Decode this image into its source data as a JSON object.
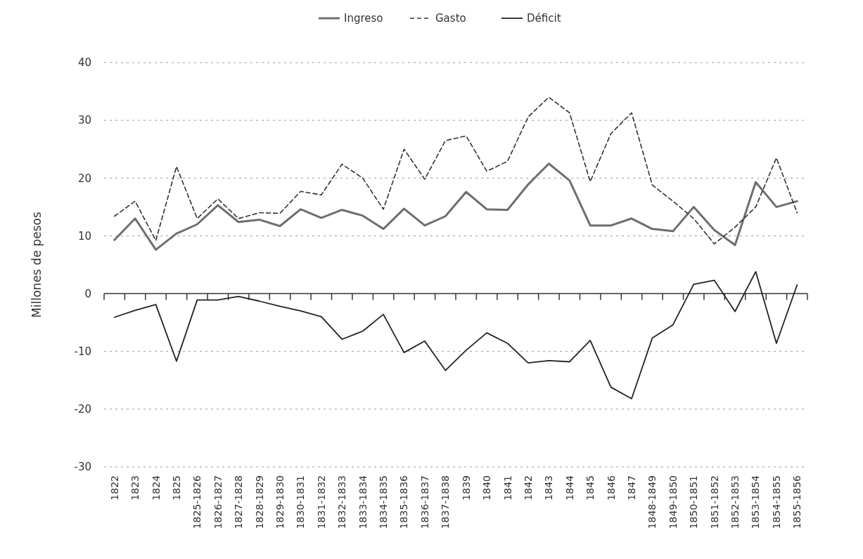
{
  "chart_data": {
    "type": "line",
    "ylabel": "Millones de pesos",
    "categories": [
      "1822",
      "1823",
      "1824",
      "1825",
      "1825-1826",
      "1826-1827",
      "1827-1828",
      "1828-1829",
      "1829-1830",
      "1830-1831",
      "1831-1832",
      "1832-1833",
      "1833-1834",
      "1834-1835",
      "1835-1836",
      "1836-1837",
      "1837-1838",
      "1839",
      "1840",
      "1841",
      "1842",
      "1843",
      "1844",
      "1845",
      "1846",
      "1847",
      "1848-1849",
      "1849-1850",
      "1850-1851",
      "1851-1852",
      "1852-1853",
      "1853-1854",
      "1854-1855",
      "1855-1856"
    ],
    "series": [
      {
        "name": "Ingreso",
        "color": "#6e6e6e",
        "line_style": "solid",
        "values": [
          9.3,
          13,
          7.6,
          10.4,
          12,
          15.3,
          12.4,
          12.8,
          11.7,
          14.6,
          13.1,
          14.5,
          13.5,
          11.2,
          14.7,
          11.8,
          13.4,
          17.6,
          14.6,
          14.5,
          18.9,
          22.5,
          19.6,
          11.8,
          11.8,
          13,
          11.2,
          10.8,
          15,
          11,
          8.4,
          19.3,
          15,
          16
        ]
      },
      {
        "name": "Gasto",
        "color": "#333333",
        "line_style": "dashed",
        "values": [
          13.4,
          16,
          9.2,
          22,
          13,
          16.4,
          13,
          14,
          13.9,
          17.7,
          17.1,
          22.4,
          20,
          14.6,
          25,
          19.8,
          26.5,
          27.3,
          21.2,
          22.9,
          30.6,
          34,
          31.3,
          19.4,
          27.7,
          31.3,
          18.8,
          16,
          13,
          8.6,
          11.5,
          15,
          23.5,
          14
        ]
      },
      {
        "name": "Déficit",
        "color": "#222222",
        "line_style": "solid",
        "values": [
          -4.1,
          -2.9,
          -1.9,
          -11.7,
          -1.1,
          -1.1,
          -0.5,
          -1.3,
          -2.2,
          -3,
          -4,
          -7.9,
          -6.5,
          -3.6,
          -10.2,
          -8.2,
          -13.3,
          -9.8,
          -6.8,
          -8.6,
          -12,
          -11.6,
          -11.8,
          -8.1,
          -16.2,
          -18.2,
          -7.7,
          -5.4,
          1.6,
          2.3,
          -3.1,
          3.8,
          -8.6,
          1.5
        ]
      }
    ],
    "ylim": [
      -30,
      40
    ],
    "yticks": [
      -30,
      -20,
      -10,
      0,
      10,
      20,
      30,
      40
    ],
    "grid": "y",
    "legend": "top"
  }
}
